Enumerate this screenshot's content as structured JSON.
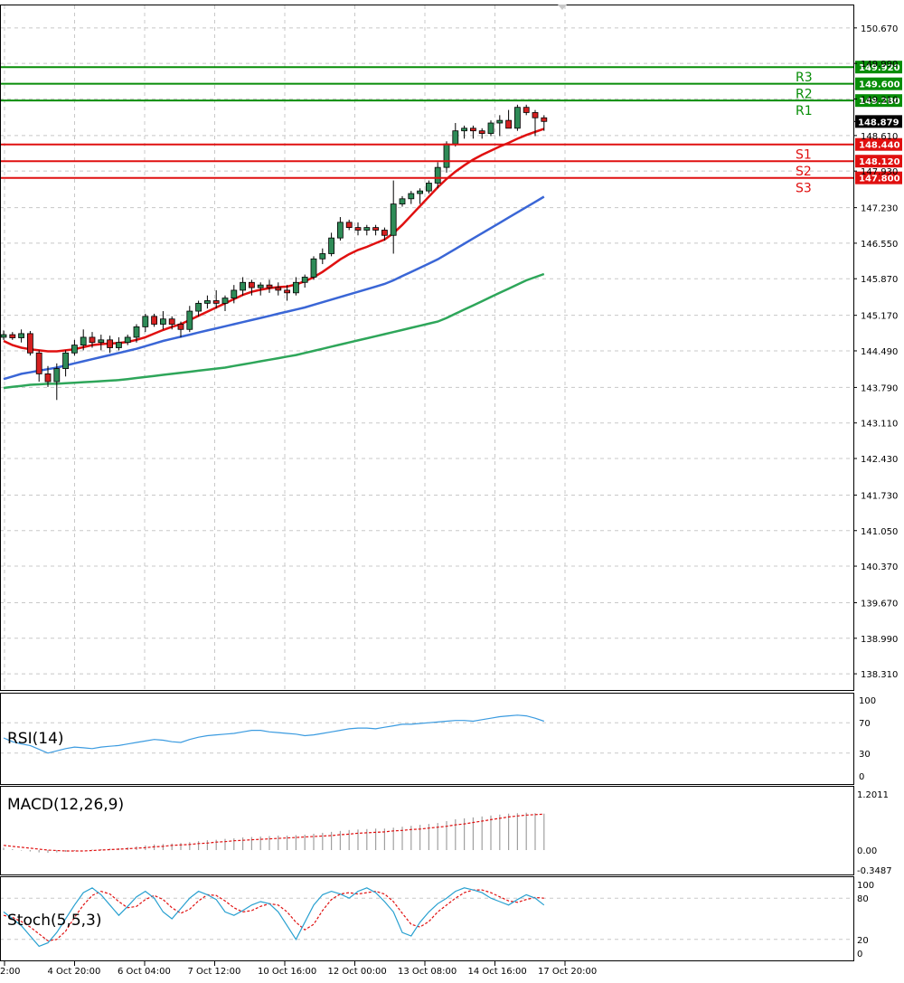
{
  "colors": {
    "background": "#ffffff",
    "grid": "#c8c8c8",
    "candle_up": "#2e8b57",
    "candle_down": "#d42020",
    "ma_fast": "#e01010",
    "ma_mid": "#3a66d6",
    "ma_slow": "#2ea65a",
    "resistance": "#078d07",
    "support": "#e01010",
    "rsi": "#3b9be0",
    "macd_signal": "#e01010",
    "macd_hist": "#a0a0a0",
    "stoch_main": "#28a0d0",
    "stoch_signal": "#e01010"
  },
  "chart_data": [
    {
      "type": "candlestick",
      "ylim": [
        138.0,
        151.1
      ],
      "y_ticks": [
        "150.670",
        "149.990",
        "149.310",
        "148.610",
        "147.930",
        "147.230",
        "146.550",
        "145.870",
        "145.170",
        "144.490",
        "143.790",
        "143.110",
        "142.430",
        "141.730",
        "141.050",
        "140.370",
        "139.670",
        "138.990",
        "138.310"
      ],
      "current_price": "148.879",
      "levels": [
        {
          "name": "R3",
          "value": 149.92,
          "label": "149.920",
          "kind": "resistance"
        },
        {
          "name": "R2",
          "value": 149.6,
          "label": "149.600",
          "kind": "resistance"
        },
        {
          "name": "R1",
          "value": 149.28,
          "label": "149.280",
          "kind": "resistance"
        },
        {
          "name": "S1",
          "value": 148.44,
          "label": "148.440",
          "kind": "support"
        },
        {
          "name": "S2",
          "value": 148.12,
          "label": "148.120",
          "kind": "support"
        },
        {
          "name": "S3",
          "value": 147.8,
          "label": "147.800",
          "kind": "support"
        }
      ],
      "x_labels": [
        "2:00",
        "4 Oct 20:00",
        "6 Oct 04:00",
        "7 Oct 12:00",
        "10 Oct 16:00",
        "12 Oct 00:00",
        "13 Oct 08:00",
        "14 Oct 16:00",
        "17 Oct 20:00"
      ],
      "candles": [
        [
          144.75,
          144.88,
          144.7,
          144.8
        ],
        [
          144.8,
          144.85,
          144.7,
          144.74
        ],
        [
          144.74,
          144.9,
          144.65,
          144.82
        ],
        [
          144.82,
          144.87,
          144.4,
          144.45
        ],
        [
          144.45,
          144.5,
          143.9,
          144.05
        ],
        [
          144.05,
          144.2,
          143.8,
          143.9
        ],
        [
          143.9,
          144.25,
          143.55,
          144.15
        ],
        [
          144.15,
          144.5,
          144.0,
          144.45
        ],
        [
          144.45,
          144.7,
          144.4,
          144.6
        ],
        [
          144.6,
          144.9,
          144.5,
          144.75
        ],
        [
          144.75,
          144.85,
          144.55,
          144.65
        ],
        [
          144.65,
          144.8,
          144.5,
          144.7
        ],
        [
          144.7,
          144.78,
          144.45,
          144.55
        ],
        [
          144.55,
          144.75,
          144.5,
          144.65
        ],
        [
          144.65,
          144.8,
          144.6,
          144.75
        ],
        [
          144.75,
          145.0,
          144.65,
          144.95
        ],
        [
          144.95,
          145.2,
          144.85,
          145.15
        ],
        [
          145.15,
          145.2,
          144.95,
          145.0
        ],
        [
          145.0,
          145.25,
          144.9,
          145.1
        ],
        [
          145.1,
          145.15,
          144.9,
          145.0
        ],
        [
          145.0,
          145.05,
          144.75,
          144.9
        ],
        [
          144.9,
          145.35,
          144.85,
          145.25
        ],
        [
          145.25,
          145.45,
          145.15,
          145.4
        ],
        [
          145.4,
          145.55,
          145.3,
          145.45
        ],
        [
          145.45,
          145.65,
          145.3,
          145.4
        ],
        [
          145.4,
          145.55,
          145.25,
          145.5
        ],
        [
          145.5,
          145.75,
          145.4,
          145.65
        ],
        [
          145.65,
          145.9,
          145.55,
          145.8
        ],
        [
          145.8,
          145.85,
          145.55,
          145.7
        ],
        [
          145.7,
          145.8,
          145.55,
          145.75
        ],
        [
          145.75,
          145.85,
          145.6,
          145.7
        ],
        [
          145.7,
          145.8,
          145.55,
          145.65
        ],
        [
          145.65,
          145.75,
          145.45,
          145.6
        ],
        [
          145.6,
          145.9,
          145.55,
          145.8
        ],
        [
          145.8,
          145.95,
          145.7,
          145.9
        ],
        [
          145.9,
          146.3,
          145.85,
          146.25
        ],
        [
          146.25,
          146.45,
          146.15,
          146.35
        ],
        [
          146.35,
          146.75,
          146.3,
          146.65
        ],
        [
          146.65,
          147.05,
          146.6,
          146.95
        ],
        [
          146.95,
          147.0,
          146.8,
          146.85
        ],
        [
          146.85,
          146.95,
          146.7,
          146.8
        ],
        [
          146.8,
          146.9,
          146.7,
          146.85
        ],
        [
          146.85,
          146.9,
          146.7,
          146.8
        ],
        [
          146.8,
          146.85,
          146.6,
          146.7
        ],
        [
          146.7,
          147.75,
          146.35,
          147.3
        ],
        [
          147.3,
          147.45,
          147.25,
          147.4
        ],
        [
          147.4,
          147.55,
          147.3,
          147.5
        ],
        [
          147.5,
          147.6,
          147.3,
          147.55
        ],
        [
          147.55,
          147.75,
          147.5,
          147.7
        ],
        [
          147.7,
          148.1,
          147.6,
          148.0
        ],
        [
          148.0,
          148.5,
          147.9,
          148.45
        ],
        [
          148.45,
          148.85,
          148.4,
          148.7
        ],
        [
          148.7,
          148.8,
          148.55,
          148.75
        ],
        [
          148.75,
          148.8,
          148.55,
          148.7
        ],
        [
          148.7,
          148.75,
          148.55,
          148.65
        ],
        [
          148.65,
          148.9,
          148.6,
          148.85
        ],
        [
          148.85,
          149.0,
          148.6,
          148.9
        ],
        [
          148.9,
          149.1,
          148.75,
          148.75
        ],
        [
          148.75,
          149.2,
          148.7,
          149.15
        ],
        [
          149.15,
          149.2,
          149.0,
          149.05
        ],
        [
          149.05,
          149.1,
          148.6,
          148.95
        ],
        [
          148.95,
          149.0,
          148.7,
          148.88
        ]
      ],
      "ma_fast": [
        144.68,
        144.6,
        144.55,
        144.52,
        144.5,
        144.48,
        144.48,
        144.5,
        144.52,
        144.56,
        144.6,
        144.62,
        144.63,
        144.64,
        144.66,
        144.7,
        144.75,
        144.82,
        144.89,
        144.95,
        145.0,
        145.08,
        145.16,
        145.24,
        145.32,
        145.4,
        145.48,
        145.56,
        145.62,
        145.66,
        145.69,
        145.71,
        145.72,
        145.76,
        145.82,
        145.9,
        146.0,
        146.12,
        146.24,
        146.34,
        146.42,
        146.48,
        146.55,
        146.62,
        146.74,
        146.9,
        147.08,
        147.26,
        147.44,
        147.62,
        147.78,
        147.92,
        148.04,
        148.15,
        148.24,
        148.32,
        148.4,
        148.47,
        148.55,
        148.62,
        148.68,
        148.74
      ],
      "ma_mid": [
        143.95,
        144.0,
        144.05,
        144.08,
        144.11,
        144.14,
        144.17,
        144.21,
        144.25,
        144.29,
        144.33,
        144.37,
        144.41,
        144.45,
        144.49,
        144.53,
        144.58,
        144.63,
        144.68,
        144.72,
        144.76,
        144.8,
        144.84,
        144.88,
        144.92,
        144.96,
        145.0,
        145.04,
        145.08,
        145.12,
        145.16,
        145.2,
        145.24,
        145.28,
        145.32,
        145.37,
        145.42,
        145.47,
        145.52,
        145.57,
        145.62,
        145.67,
        145.72,
        145.77,
        145.84,
        145.92,
        146.0,
        146.08,
        146.16,
        146.24,
        146.34,
        146.44,
        146.54,
        146.64,
        146.74,
        146.84,
        146.94,
        147.04,
        147.14,
        147.24,
        147.34,
        147.44
      ],
      "ma_slow": [
        143.78,
        143.8,
        143.82,
        143.84,
        143.85,
        143.86,
        143.86,
        143.87,
        143.88,
        143.89,
        143.9,
        143.91,
        143.92,
        143.93,
        143.95,
        143.97,
        143.99,
        144.01,
        144.03,
        144.05,
        144.07,
        144.09,
        144.11,
        144.13,
        144.15,
        144.17,
        144.2,
        144.23,
        144.26,
        144.29,
        144.32,
        144.35,
        144.38,
        144.41,
        144.45,
        144.49,
        144.53,
        144.57,
        144.61,
        144.65,
        144.69,
        144.73,
        144.77,
        144.81,
        144.85,
        144.89,
        144.93,
        144.97,
        145.01,
        145.05,
        145.12,
        145.2,
        145.28,
        145.36,
        145.44,
        145.52,
        145.6,
        145.68,
        145.76,
        145.84,
        145.9,
        145.96
      ]
    },
    {
      "type": "line",
      "title": "RSI(14)",
      "ylim": [
        0,
        100
      ],
      "y_ticks": [
        "100",
        "70",
        "30",
        "0"
      ],
      "values": [
        50,
        45,
        42,
        40,
        35,
        30,
        33,
        36,
        38,
        37,
        36,
        38,
        39,
        40,
        42,
        44,
        46,
        48,
        47,
        45,
        44,
        48,
        51,
        53,
        54,
        55,
        56,
        58,
        60,
        60,
        58,
        57,
        56,
        55,
        53,
        54,
        56,
        58,
        60,
        62,
        63,
        63,
        62,
        64,
        66,
        68,
        68,
        69,
        70,
        71,
        72,
        73,
        73,
        72,
        74,
        76,
        78,
        79,
        80,
        79,
        76,
        72
      ]
    },
    {
      "type": "bar",
      "title": "MACD(12,26,9)",
      "ylim": [
        -0.3487,
        1.2011
      ],
      "y_ticks": [
        "1.2011",
        "0.00",
        "-0.3487"
      ],
      "histogram": [
        0.05,
        0.02,
        -0.01,
        -0.03,
        -0.05,
        -0.06,
        -0.05,
        -0.04,
        -0.02,
        0.0,
        0.01,
        0.02,
        0.03,
        0.04,
        0.06,
        0.08,
        0.1,
        0.12,
        0.13,
        0.14,
        0.15,
        0.17,
        0.19,
        0.21,
        0.22,
        0.24,
        0.25,
        0.27,
        0.28,
        0.29,
        0.3,
        0.31,
        0.31,
        0.32,
        0.33,
        0.35,
        0.37,
        0.39,
        0.41,
        0.43,
        0.44,
        0.45,
        0.46,
        0.46,
        0.48,
        0.5,
        0.52,
        0.54,
        0.56,
        0.58,
        0.62,
        0.66,
        0.68,
        0.7,
        0.72,
        0.74,
        0.76,
        0.78,
        0.79,
        0.8,
        0.79,
        0.78
      ],
      "signal": [
        0.1,
        0.08,
        0.06,
        0.04,
        0.02,
        0.0,
        -0.01,
        -0.02,
        -0.02,
        -0.02,
        -0.01,
        0.0,
        0.01,
        0.02,
        0.03,
        0.04,
        0.05,
        0.07,
        0.08,
        0.1,
        0.11,
        0.12,
        0.14,
        0.15,
        0.17,
        0.18,
        0.2,
        0.21,
        0.22,
        0.23,
        0.24,
        0.25,
        0.26,
        0.27,
        0.28,
        0.29,
        0.3,
        0.31,
        0.33,
        0.34,
        0.36,
        0.37,
        0.38,
        0.39,
        0.41,
        0.42,
        0.44,
        0.45,
        0.47,
        0.49,
        0.51,
        0.54,
        0.56,
        0.59,
        0.62,
        0.65,
        0.68,
        0.71,
        0.73,
        0.75,
        0.76,
        0.77
      ]
    },
    {
      "type": "line",
      "title": "Stoch(5,5,3)",
      "ylim": [
        0,
        100
      ],
      "y_ticks": [
        "100",
        "80",
        "20",
        "0"
      ],
      "main": [
        60,
        50,
        40,
        25,
        10,
        15,
        30,
        50,
        70,
        88,
        95,
        85,
        70,
        55,
        68,
        82,
        90,
        80,
        60,
        50,
        65,
        80,
        90,
        85,
        78,
        60,
        55,
        62,
        70,
        75,
        72,
        60,
        40,
        20,
        45,
        70,
        85,
        90,
        86,
        80,
        90,
        95,
        88,
        75,
        60,
        30,
        25,
        45,
        60,
        72,
        80,
        90,
        95,
        92,
        88,
        80,
        75,
        70,
        78,
        85,
        80,
        70
      ],
      "signal": [
        55,
        52,
        46,
        38,
        28,
        18,
        20,
        32,
        52,
        70,
        84,
        90,
        86,
        75,
        66,
        68,
        78,
        84,
        78,
        66,
        58,
        64,
        76,
        85,
        84,
        76,
        66,
        60,
        62,
        68,
        72,
        70,
        60,
        45,
        34,
        42,
        62,
        78,
        86,
        88,
        86,
        88,
        90,
        86,
        75,
        58,
        42,
        38,
        46,
        60,
        70,
        80,
        88,
        92,
        92,
        88,
        82,
        76,
        74,
        78,
        81,
        80
      ]
    }
  ]
}
